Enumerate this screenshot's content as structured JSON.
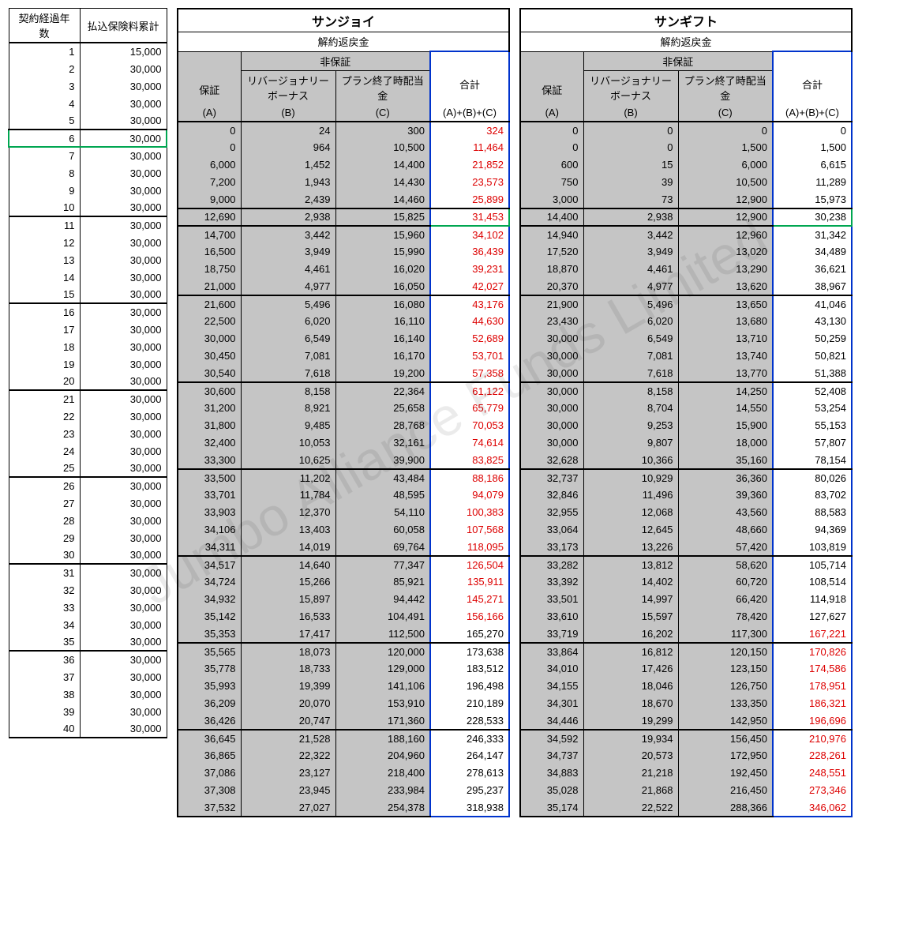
{
  "watermark": "Jumbo Alliance Funds Limited",
  "left_headers": {
    "years": "契約経過年数",
    "premium": "払込保険料累計"
  },
  "product1": {
    "title": "サンジョイ",
    "surrender": "解約返戻金",
    "nonguar": "非保証",
    "colA": "保証",
    "subA": "(A)",
    "colB": "リバージョナリーボーナス",
    "subB": "(B)",
    "colC": "プラン終了時配当金",
    "subC": "(C)",
    "colT": "合計",
    "subT": "(A)+(B)+(C)"
  },
  "product2": {
    "title": "サンギフト",
    "surrender": "解約返戻金",
    "nonguar": "非保証",
    "colA": "保証",
    "subA": "(A)",
    "colB": "リバージョナリーボーナス",
    "subB": "(B)",
    "colC": "プラン終了時配当金",
    "subC": "(C)",
    "colT": "合計",
    "subT": "(A)+(B)+(C)"
  },
  "rows": [
    {
      "y": "1",
      "p": "15,000",
      "a1": "0",
      "b1": "24",
      "c1": "300",
      "t1": "324",
      "r1": true,
      "a2": "0",
      "b2": "0",
      "c2": "0",
      "t2": "0",
      "r2": false
    },
    {
      "y": "2",
      "p": "30,000",
      "a1": "0",
      "b1": "964",
      "c1": "10,500",
      "t1": "11,464",
      "r1": true,
      "a2": "0",
      "b2": "0",
      "c2": "1,500",
      "t2": "1,500",
      "r2": false
    },
    {
      "y": "3",
      "p": "30,000",
      "a1": "6,000",
      "b1": "1,452",
      "c1": "14,400",
      "t1": "21,852",
      "r1": true,
      "a2": "600",
      "b2": "15",
      "c2": "6,000",
      "t2": "6,615",
      "r2": false
    },
    {
      "y": "4",
      "p": "30,000",
      "a1": "7,200",
      "b1": "1,943",
      "c1": "14,430",
      "t1": "23,573",
      "r1": true,
      "a2": "750",
      "b2": "39",
      "c2": "10,500",
      "t2": "11,289",
      "r2": false
    },
    {
      "y": "5",
      "p": "30,000",
      "a1": "9,000",
      "b1": "2,439",
      "c1": "14,460",
      "t1": "25,899",
      "r1": true,
      "a2": "3,000",
      "b2": "73",
      "c2": "12,900",
      "t2": "15,973",
      "r2": false
    },
    {
      "y": "6",
      "p": "30,000",
      "a1": "12,690",
      "b1": "2,938",
      "c1": "15,825",
      "t1": "31,453",
      "r1": true,
      "a2": "14,400",
      "b2": "2,938",
      "c2": "12,900",
      "t2": "30,238",
      "r2": false,
      "green": true
    },
    {
      "y": "7",
      "p": "30,000",
      "a1": "14,700",
      "b1": "3,442",
      "c1": "15,960",
      "t1": "34,102",
      "r1": true,
      "a2": "14,940",
      "b2": "3,442",
      "c2": "12,960",
      "t2": "31,342",
      "r2": false
    },
    {
      "y": "8",
      "p": "30,000",
      "a1": "16,500",
      "b1": "3,949",
      "c1": "15,990",
      "t1": "36,439",
      "r1": true,
      "a2": "17,520",
      "b2": "3,949",
      "c2": "13,020",
      "t2": "34,489",
      "r2": false
    },
    {
      "y": "9",
      "p": "30,000",
      "a1": "18,750",
      "b1": "4,461",
      "c1": "16,020",
      "t1": "39,231",
      "r1": true,
      "a2": "18,870",
      "b2": "4,461",
      "c2": "13,290",
      "t2": "36,621",
      "r2": false
    },
    {
      "y": "10",
      "p": "30,000",
      "a1": "21,000",
      "b1": "4,977",
      "c1": "16,050",
      "t1": "42,027",
      "r1": true,
      "a2": "20,370",
      "b2": "4,977",
      "c2": "13,620",
      "t2": "38,967",
      "r2": false
    },
    {
      "y": "11",
      "p": "30,000",
      "a1": "21,600",
      "b1": "5,496",
      "c1": "16,080",
      "t1": "43,176",
      "r1": true,
      "a2": "21,900",
      "b2": "5,496",
      "c2": "13,650",
      "t2": "41,046",
      "r2": false
    },
    {
      "y": "12",
      "p": "30,000",
      "a1": "22,500",
      "b1": "6,020",
      "c1": "16,110",
      "t1": "44,630",
      "r1": true,
      "a2": "23,430",
      "b2": "6,020",
      "c2": "13,680",
      "t2": "43,130",
      "r2": false
    },
    {
      "y": "13",
      "p": "30,000",
      "a1": "30,000",
      "b1": "6,549",
      "c1": "16,140",
      "t1": "52,689",
      "r1": true,
      "a2": "30,000",
      "b2": "6,549",
      "c2": "13,710",
      "t2": "50,259",
      "r2": false
    },
    {
      "y": "14",
      "p": "30,000",
      "a1": "30,450",
      "b1": "7,081",
      "c1": "16,170",
      "t1": "53,701",
      "r1": true,
      "a2": "30,000",
      "b2": "7,081",
      "c2": "13,740",
      "t2": "50,821",
      "r2": false
    },
    {
      "y": "15",
      "p": "30,000",
      "a1": "30,540",
      "b1": "7,618",
      "c1": "19,200",
      "t1": "57,358",
      "r1": true,
      "a2": "30,000",
      "b2": "7,618",
      "c2": "13,770",
      "t2": "51,388",
      "r2": false
    },
    {
      "y": "16",
      "p": "30,000",
      "a1": "30,600",
      "b1": "8,158",
      "c1": "22,364",
      "t1": "61,122",
      "r1": true,
      "a2": "30,000",
      "b2": "8,158",
      "c2": "14,250",
      "t2": "52,408",
      "r2": false
    },
    {
      "y": "17",
      "p": "30,000",
      "a1": "31,200",
      "b1": "8,921",
      "c1": "25,658",
      "t1": "65,779",
      "r1": true,
      "a2": "30,000",
      "b2": "8,704",
      "c2": "14,550",
      "t2": "53,254",
      "r2": false
    },
    {
      "y": "18",
      "p": "30,000",
      "a1": "31,800",
      "b1": "9,485",
      "c1": "28,768",
      "t1": "70,053",
      "r1": true,
      "a2": "30,000",
      "b2": "9,253",
      "c2": "15,900",
      "t2": "55,153",
      "r2": false
    },
    {
      "y": "19",
      "p": "30,000",
      "a1": "32,400",
      "b1": "10,053",
      "c1": "32,161",
      "t1": "74,614",
      "r1": true,
      "a2": "30,000",
      "b2": "9,807",
      "c2": "18,000",
      "t2": "57,807",
      "r2": false
    },
    {
      "y": "20",
      "p": "30,000",
      "a1": "33,300",
      "b1": "10,625",
      "c1": "39,900",
      "t1": "83,825",
      "r1": true,
      "a2": "32,628",
      "b2": "10,366",
      "c2": "35,160",
      "t2": "78,154",
      "r2": false
    },
    {
      "y": "21",
      "p": "30,000",
      "a1": "33,500",
      "b1": "11,202",
      "c1": "43,484",
      "t1": "88,186",
      "r1": true,
      "a2": "32,737",
      "b2": "10,929",
      "c2": "36,360",
      "t2": "80,026",
      "r2": false
    },
    {
      "y": "22",
      "p": "30,000",
      "a1": "33,701",
      "b1": "11,784",
      "c1": "48,595",
      "t1": "94,079",
      "r1": true,
      "a2": "32,846",
      "b2": "11,496",
      "c2": "39,360",
      "t2": "83,702",
      "r2": false
    },
    {
      "y": "23",
      "p": "30,000",
      "a1": "33,903",
      "b1": "12,370",
      "c1": "54,110",
      "t1": "100,383",
      "r1": true,
      "a2": "32,955",
      "b2": "12,068",
      "c2": "43,560",
      "t2": "88,583",
      "r2": false
    },
    {
      "y": "24",
      "p": "30,000",
      "a1": "34,106",
      "b1": "13,403",
      "c1": "60,058",
      "t1": "107,568",
      "r1": true,
      "a2": "33,064",
      "b2": "12,645",
      "c2": "48,660",
      "t2": "94,369",
      "r2": false
    },
    {
      "y": "25",
      "p": "30,000",
      "a1": "34,311",
      "b1": "14,019",
      "c1": "69,764",
      "t1": "118,095",
      "r1": true,
      "a2": "33,173",
      "b2": "13,226",
      "c2": "57,420",
      "t2": "103,819",
      "r2": false
    },
    {
      "y": "26",
      "p": "30,000",
      "a1": "34,517",
      "b1": "14,640",
      "c1": "77,347",
      "t1": "126,504",
      "r1": true,
      "a2": "33,282",
      "b2": "13,812",
      "c2": "58,620",
      "t2": "105,714",
      "r2": false
    },
    {
      "y": "27",
      "p": "30,000",
      "a1": "34,724",
      "b1": "15,266",
      "c1": "85,921",
      "t1": "135,911",
      "r1": true,
      "a2": "33,392",
      "b2": "14,402",
      "c2": "60,720",
      "t2": "108,514",
      "r2": false
    },
    {
      "y": "28",
      "p": "30,000",
      "a1": "34,932",
      "b1": "15,897",
      "c1": "94,442",
      "t1": "145,271",
      "r1": true,
      "a2": "33,501",
      "b2": "14,997",
      "c2": "66,420",
      "t2": "114,918",
      "r2": false
    },
    {
      "y": "29",
      "p": "30,000",
      "a1": "35,142",
      "b1": "16,533",
      "c1": "104,491",
      "t1": "156,166",
      "r1": true,
      "a2": "33,610",
      "b2": "15,597",
      "c2": "78,420",
      "t2": "127,627",
      "r2": false
    },
    {
      "y": "30",
      "p": "30,000",
      "a1": "35,353",
      "b1": "17,417",
      "c1": "112,500",
      "t1": "165,270",
      "r1": false,
      "a2": "33,719",
      "b2": "16,202",
      "c2": "117,300",
      "t2": "167,221",
      "r2": true
    },
    {
      "y": "31",
      "p": "30,000",
      "a1": "35,565",
      "b1": "18,073",
      "c1": "120,000",
      "t1": "173,638",
      "r1": false,
      "a2": "33,864",
      "b2": "16,812",
      "c2": "120,150",
      "t2": "170,826",
      "r2": true
    },
    {
      "y": "32",
      "p": "30,000",
      "a1": "35,778",
      "b1": "18,733",
      "c1": "129,000",
      "t1": "183,512",
      "r1": false,
      "a2": "34,010",
      "b2": "17,426",
      "c2": "123,150",
      "t2": "174,586",
      "r2": true
    },
    {
      "y": "33",
      "p": "30,000",
      "a1": "35,993",
      "b1": "19,399",
      "c1": "141,106",
      "t1": "196,498",
      "r1": false,
      "a2": "34,155",
      "b2": "18,046",
      "c2": "126,750",
      "t2": "178,951",
      "r2": true
    },
    {
      "y": "34",
      "p": "30,000",
      "a1": "36,209",
      "b1": "20,070",
      "c1": "153,910",
      "t1": "210,189",
      "r1": false,
      "a2": "34,301",
      "b2": "18,670",
      "c2": "133,350",
      "t2": "186,321",
      "r2": true
    },
    {
      "y": "35",
      "p": "30,000",
      "a1": "36,426",
      "b1": "20,747",
      "c1": "171,360",
      "t1": "228,533",
      "r1": false,
      "a2": "34,446",
      "b2": "19,299",
      "c2": "142,950",
      "t2": "196,696",
      "r2": true
    },
    {
      "y": "36",
      "p": "30,000",
      "a1": "36,645",
      "b1": "21,528",
      "c1": "188,160",
      "t1": "246,333",
      "r1": false,
      "a2": "34,592",
      "b2": "19,934",
      "c2": "156,450",
      "t2": "210,976",
      "r2": true
    },
    {
      "y": "37",
      "p": "30,000",
      "a1": "36,865",
      "b1": "22,322",
      "c1": "204,960",
      "t1": "264,147",
      "r1": false,
      "a2": "34,737",
      "b2": "20,573",
      "c2": "172,950",
      "t2": "228,261",
      "r2": true
    },
    {
      "y": "38",
      "p": "30,000",
      "a1": "37,086",
      "b1": "23,127",
      "c1": "218,400",
      "t1": "278,613",
      "r1": false,
      "a2": "34,883",
      "b2": "21,218",
      "c2": "192,450",
      "t2": "248,551",
      "r2": true
    },
    {
      "y": "39",
      "p": "30,000",
      "a1": "37,308",
      "b1": "23,945",
      "c1": "233,984",
      "t1": "295,237",
      "r1": false,
      "a2": "35,028",
      "b2": "21,868",
      "c2": "216,450",
      "t2": "273,346",
      "r2": true
    },
    {
      "y": "40",
      "p": "30,000",
      "a1": "37,532",
      "b1": "27,027",
      "c1": "254,378",
      "t1": "318,938",
      "r1": false,
      "a2": "35,174",
      "b2": "22,522",
      "c2": "288,366",
      "t2": "346,062",
      "r2": true
    }
  ],
  "colors": {
    "red": "#d00",
    "blue": "#0033cc",
    "green": "#00a651",
    "shade": "#c5c5c5"
  },
  "group_breaks": [
    5,
    6,
    10,
    15,
    20,
    25,
    30,
    35,
    40
  ]
}
